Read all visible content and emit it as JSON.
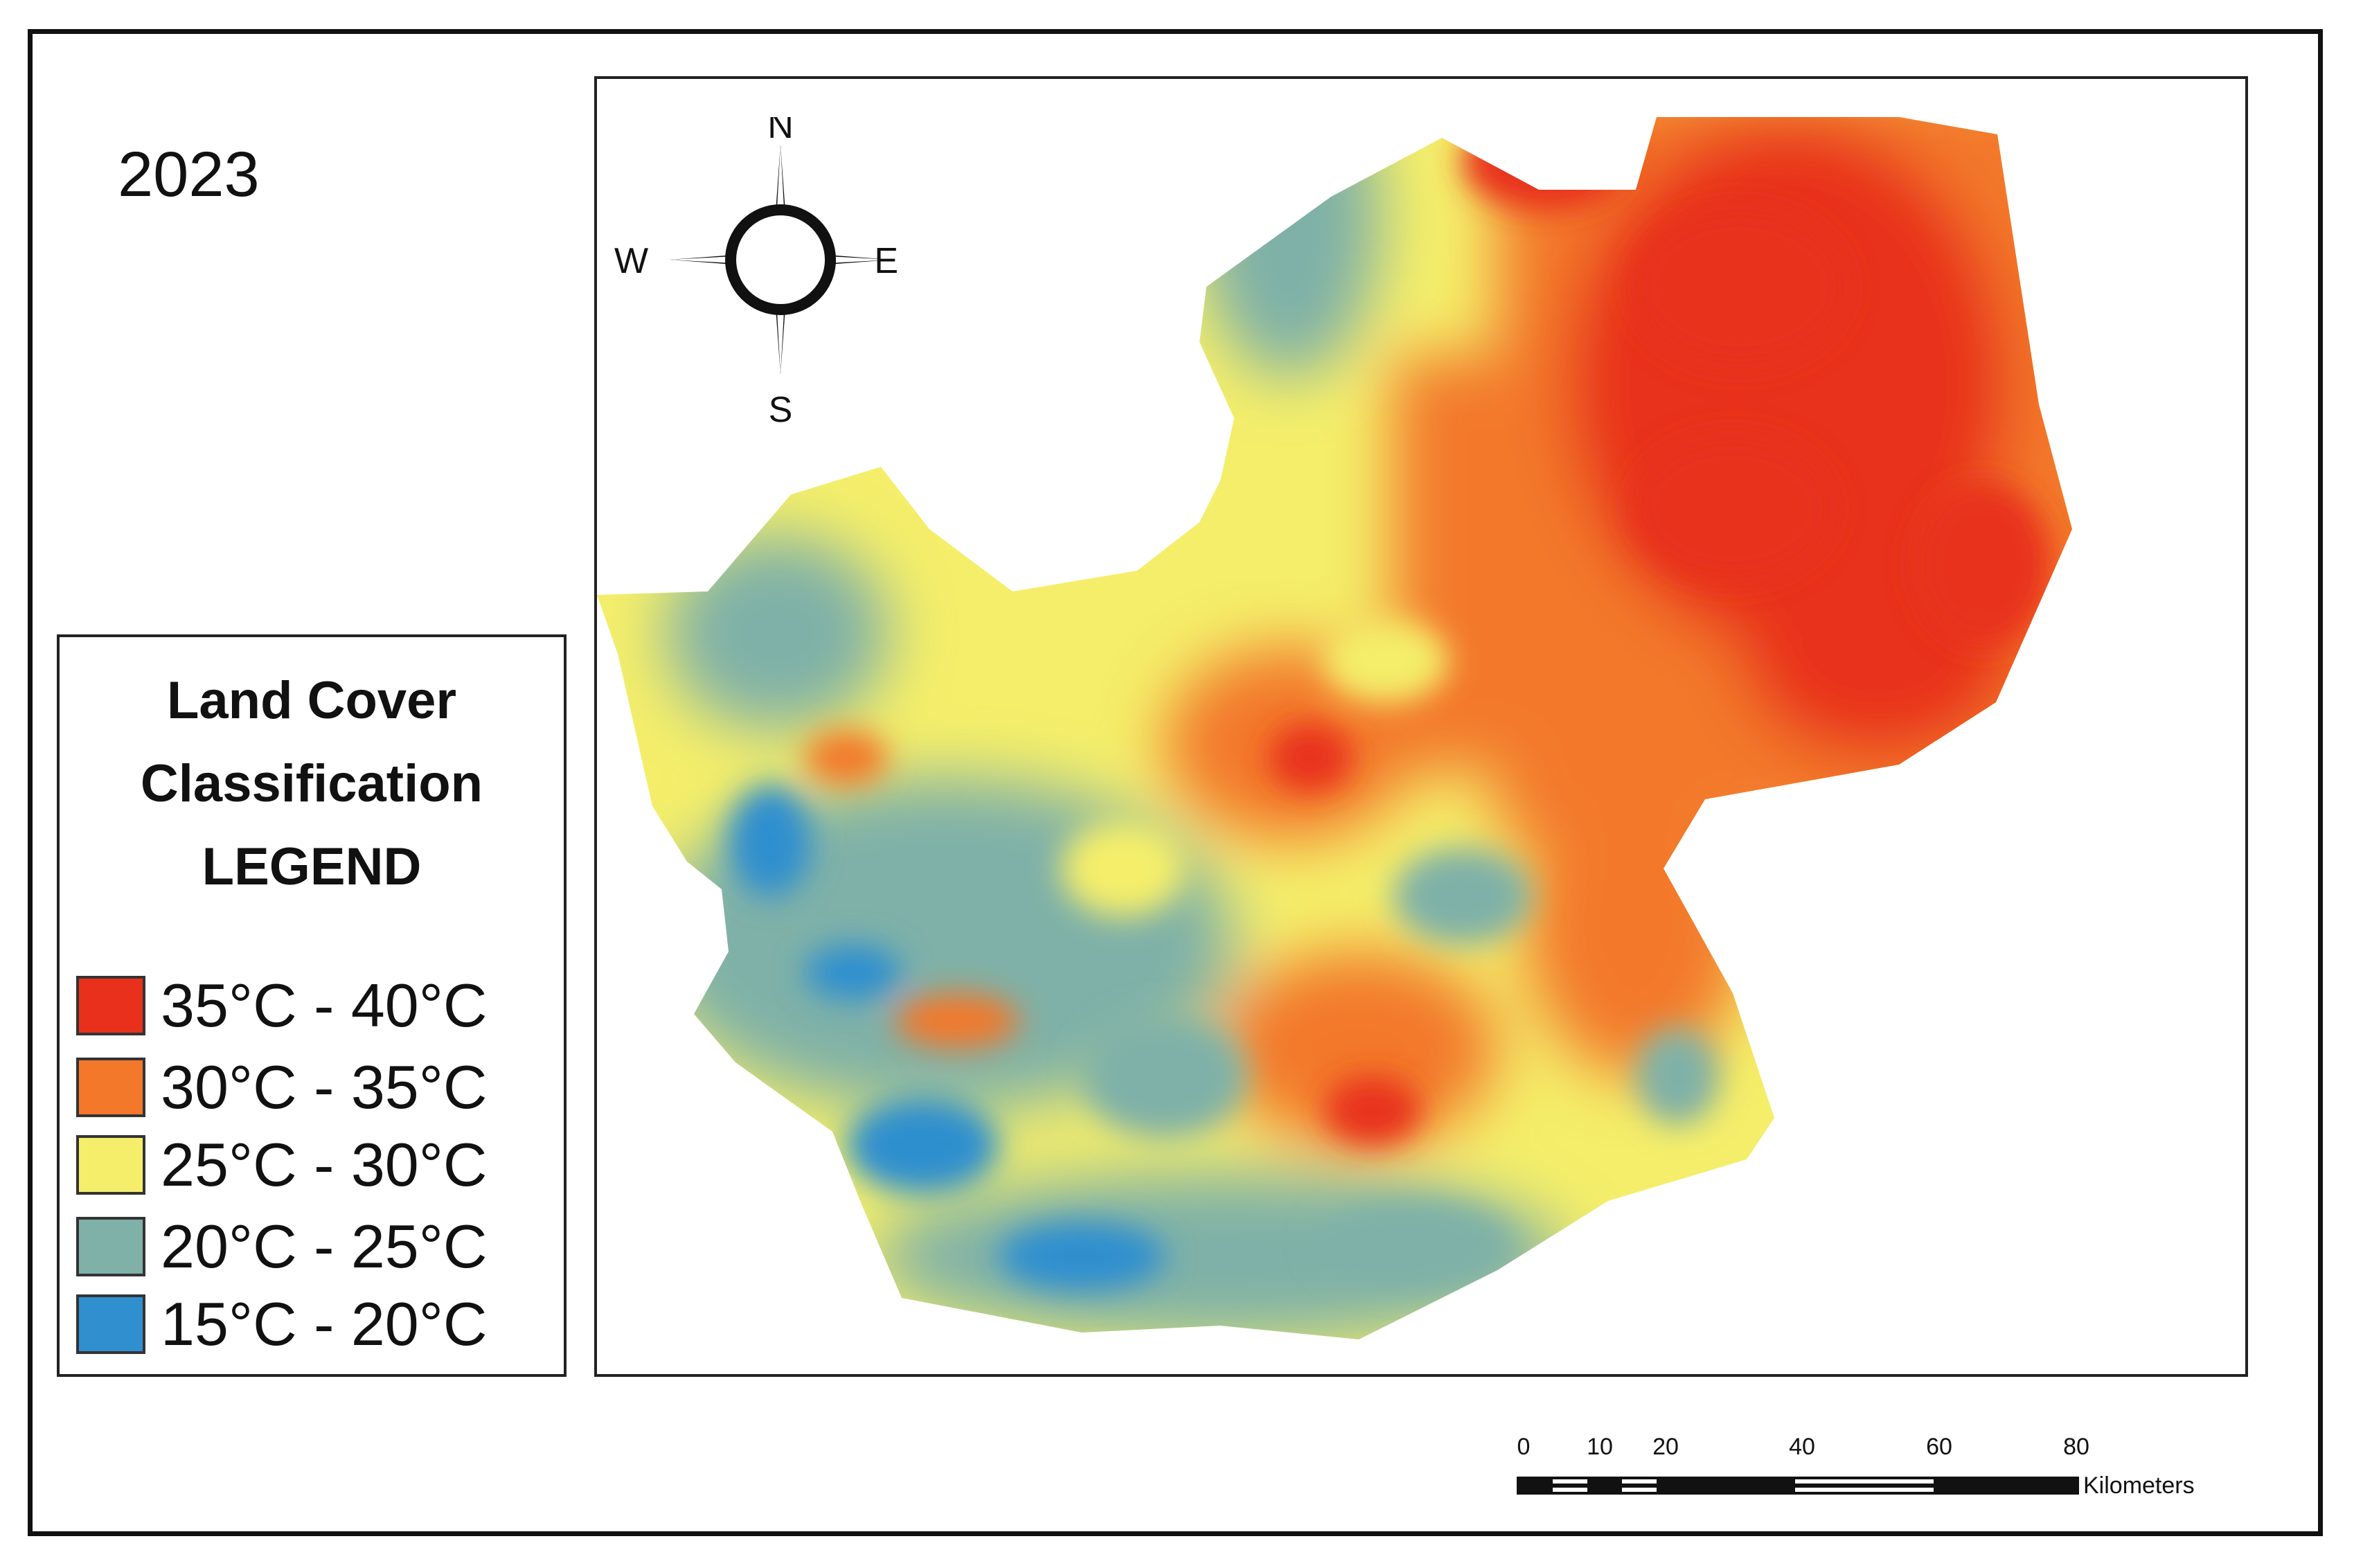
{
  "year": "2023",
  "legend": {
    "title_lines": [
      "Land Cover",
      "Classification",
      "LEGEND"
    ],
    "items": [
      {
        "label": "35°C - 40°C",
        "color": "#e8301c"
      },
      {
        "label": "30°C - 35°C",
        "color": "#f3782a"
      },
      {
        "label": "25°C - 30°C",
        "color": "#f4ee6a"
      },
      {
        "label": "20°C - 25°C",
        "color": "#7fb1a8"
      },
      {
        "label": "15°C - 20°C",
        "color": "#2f8fcf"
      }
    ]
  },
  "compass": {
    "n": "N",
    "s": "S",
    "e": "E",
    "w": "W"
  },
  "scale_bar": {
    "ticks": [
      "0",
      "10",
      "20",
      "40",
      "60",
      "80"
    ],
    "units": "Kilometers"
  }
}
